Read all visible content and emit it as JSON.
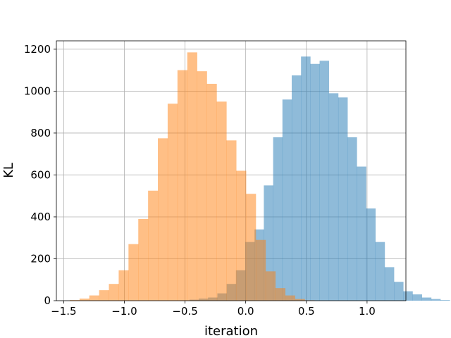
{
  "chart_data": {
    "type": "bar",
    "title": "",
    "xlabel": "iteration",
    "ylabel": "KL",
    "xlim": [
      -1.56,
      1.32
    ],
    "ylim": [
      0,
      1240
    ],
    "grid": true,
    "xticks": [
      -1.5,
      -1.0,
      -0.5,
      0.0,
      0.5,
      1.0
    ],
    "xtick_labels": [
      "−1.5",
      "−1.0",
      "−0.5",
      "0.0",
      "0.5",
      "1.0"
    ],
    "yticks": [
      0,
      200,
      400,
      600,
      800,
      1000,
      1200
    ],
    "ytick_labels": [
      "0",
      "200",
      "400",
      "600",
      "800",
      "1000",
      "1200"
    ],
    "series": [
      {
        "color": "#1f77b4",
        "alpha": 0.5,
        "bin_start": -0.54,
        "bin_width": 0.0766,
        "values": [
          1,
          5,
          10,
          15,
          35,
          80,
          145,
          280,
          340,
          550,
          780,
          960,
          1075,
          1165,
          1130,
          1145,
          990,
          970,
          780,
          640,
          440,
          280,
          160,
          90,
          45,
          30,
          15,
          8,
          3
        ]
      },
      {
        "color": "#ff7f0e",
        "alpha": 0.5,
        "bin_start": -1.45,
        "bin_width": 0.0807,
        "values": [
          3,
          10,
          25,
          50,
          80,
          145,
          270,
          390,
          525,
          775,
          940,
          1100,
          1185,
          1095,
          1035,
          950,
          765,
          620,
          510,
          290,
          140,
          60,
          25,
          8,
          2
        ]
      }
    ]
  }
}
